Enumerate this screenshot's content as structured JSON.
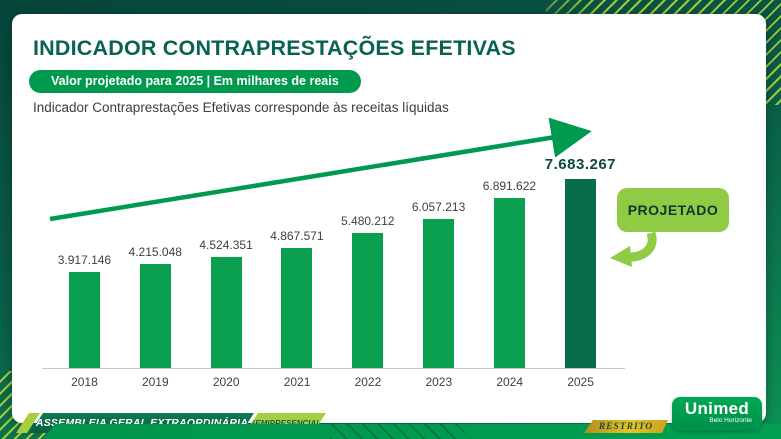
{
  "slide": {
    "title": "INDICADOR CONTRAPRESTAÇÕES EFETIVAS",
    "badge": "Valor projetado para 2025 | Em milhares de reais",
    "subtitle": "Indicador Contraprestações Efetivas corresponde às receitas líquidas",
    "projected_label": "PROJETADO"
  },
  "chart_data": {
    "type": "bar",
    "categories": [
      "2018",
      "2019",
      "2020",
      "2021",
      "2022",
      "2023",
      "2024",
      "2025"
    ],
    "values": [
      3917146,
      4215048,
      4524351,
      4867571,
      5480212,
      6057213,
      6891622,
      7683267
    ],
    "value_labels": [
      "3.917.146",
      "4.215.048",
      "4.524.351",
      "4.867.571",
      "5.480.212",
      "6.057.213",
      "6.891.622",
      "7.683.267"
    ],
    "highlight_index": 7,
    "highlight_meaning": "PROJETADO",
    "unit": "milhares de reais",
    "title": "INDICADOR CONTRAPRESTAÇÕES EFETIVAS",
    "xlabel": "",
    "ylabel": "",
    "ylim": [
      0,
      7683267
    ],
    "grid": false,
    "legend": "none",
    "annotations": [
      "ascending trend arrow above bars"
    ],
    "colors": {
      "bar": "#0AA050",
      "highlight_bar": "#086D4B",
      "value_label": "#3F3F3F",
      "highlight_value_label": "#0A4A3E",
      "trend_arrow": "#009A4E",
      "projected_box": "#8FCB45"
    }
  },
  "footer": {
    "event": "ASSEMBLEIA GERAL EXTRAORDINÁRIA",
    "mode": "SEMIPRESENCIAL",
    "classification": "RESTRITO",
    "logo": {
      "brand": "Unimed",
      "region": "Belo Horizonte"
    }
  },
  "theme": {
    "background_dark": "#06453A",
    "background_green": "#0C9153",
    "stripe_color": "#ABCE3C",
    "card": "#FFFFFF",
    "title_color": "#0A6250",
    "pill_green": "#009A4E",
    "gold": "#E8C22B"
  }
}
